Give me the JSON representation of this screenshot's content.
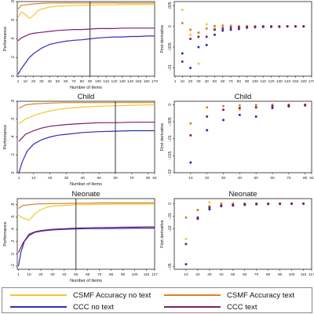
{
  "colors": {
    "csmf_no_text": "#F2C832",
    "csmf_text": "#D9822B",
    "ccc_no_text": "#2E2EB8",
    "ccc_text": "#7A1F6E",
    "vline": "#333333",
    "axis": "#222222"
  },
  "legend": [
    {
      "key": "csmf_no_text",
      "label": "CSMF Accuracy no text"
    },
    {
      "key": "csmf_text",
      "label": "CSMF Accuracy text"
    },
    {
      "key": "ccc_no_text",
      "label": "CCC no text"
    },
    {
      "key": "ccc_text",
      "label": "CCC text"
    }
  ],
  "chart_data": [
    {
      "type": "line",
      "title": "",
      "xlabel": "Number of Items",
      "ylabel": "Performance",
      "xlim": [
        0,
        170
      ],
      "ylim": [
        0,
        0.8
      ],
      "vline": 90,
      "xticks": [
        1,
        10,
        20,
        30,
        40,
        50,
        60,
        70,
        80,
        90,
        100,
        110,
        120,
        130,
        140,
        150,
        160,
        170
      ],
      "yticks": [
        {
          "v": 0,
          "label": "0"
        },
        {
          "v": 0.2,
          "label": ".2"
        },
        {
          "v": 0.4,
          "label": ".4"
        },
        {
          "v": 0.6,
          "label": ".6"
        },
        {
          "v": 0.8,
          "label": ".8"
        }
      ],
      "series": [
        {
          "key": "csmf_no_text",
          "x": [
            1,
            5,
            10,
            15,
            20,
            25,
            30,
            40,
            50,
            60,
            70,
            80,
            90,
            100,
            110,
            120,
            130,
            140,
            150,
            160,
            170
          ],
          "y": [
            0.63,
            0.69,
            0.66,
            0.62,
            0.65,
            0.7,
            0.72,
            0.74,
            0.75,
            0.755,
            0.76,
            0.76,
            0.76,
            0.765,
            0.765,
            0.765,
            0.77,
            0.77,
            0.77,
            0.77,
            0.77
          ]
        },
        {
          "key": "csmf_text",
          "x": [
            1,
            5,
            10,
            15,
            20,
            30,
            40,
            50,
            60,
            70,
            80,
            90,
            100,
            110,
            120,
            130,
            140,
            150,
            160,
            170
          ],
          "y": [
            0.72,
            0.76,
            0.765,
            0.77,
            0.775,
            0.78,
            0.785,
            0.785,
            0.785,
            0.785,
            0.785,
            0.785,
            0.785,
            0.785,
            0.785,
            0.785,
            0.785,
            0.785,
            0.785,
            0.785
          ]
        },
        {
          "key": "ccc_no_text",
          "x": [
            1,
            5,
            10,
            15,
            20,
            25,
            30,
            35,
            40,
            50,
            60,
            70,
            80,
            90,
            100,
            110,
            120,
            130,
            140,
            150,
            160,
            170
          ],
          "y": [
            0.02,
            0.08,
            0.14,
            0.2,
            0.24,
            0.27,
            0.3,
            0.32,
            0.34,
            0.36,
            0.375,
            0.385,
            0.39,
            0.4,
            0.41,
            0.415,
            0.42,
            0.42,
            0.425,
            0.425,
            0.43,
            0.43
          ]
        },
        {
          "key": "ccc_text",
          "x": [
            1,
            5,
            10,
            15,
            20,
            30,
            40,
            50,
            60,
            70,
            80,
            90,
            100,
            110,
            120,
            130,
            140,
            150,
            160,
            170
          ],
          "y": [
            0.38,
            0.41,
            0.43,
            0.45,
            0.46,
            0.47,
            0.48,
            0.49,
            0.495,
            0.5,
            0.5,
            0.505,
            0.51,
            0.51,
            0.51,
            0.515,
            0.515,
            0.515,
            0.515,
            0.515
          ]
        }
      ]
    },
    {
      "type": "scatter",
      "title": "",
      "xlabel": "",
      "ylabel": "First derivative",
      "xlim": [
        0,
        170
      ],
      "ylim": [
        -0.012,
        0.006
      ],
      "xticks": [
        1,
        10,
        20,
        30,
        40,
        50,
        60,
        70,
        80,
        90,
        100,
        110,
        120,
        130,
        140,
        150,
        160,
        170
      ],
      "yticks": [
        {
          "v": 0.005,
          "label": ".005"
        },
        {
          "v": 0,
          "label": "0"
        },
        {
          "v": -0.005,
          "label": "-.005"
        },
        {
          "v": -0.01,
          "label": "-.01"
        }
      ],
      "series": [
        {
          "key": "csmf_no_text",
          "x": [
            10,
            20,
            30,
            40,
            50,
            60,
            70,
            80,
            90,
            100,
            110,
            120,
            130,
            140,
            150,
            160
          ],
          "y": [
            0.004,
            -0.002,
            -0.009,
            0.0005,
            -0.0005,
            0.0003,
            0.0002,
            0.0001,
            0.0001,
            0.0001,
            0,
            0,
            0,
            0,
            0,
            0
          ]
        },
        {
          "key": "csmf_text",
          "x": [
            10,
            20,
            30,
            40,
            50,
            60,
            70,
            80,
            90,
            100,
            110,
            120,
            130,
            140,
            150,
            160
          ],
          "y": [
            0.0008,
            -0.0008,
            -0.0015,
            -0.0005,
            0.0001,
            0.0001,
            0.0001,
            0,
            0,
            0,
            0,
            0,
            0,
            0,
            0,
            0
          ]
        },
        {
          "key": "ccc_no_text",
          "x": [
            10,
            20,
            30,
            40,
            50,
            60,
            70,
            80,
            90,
            100,
            110,
            120,
            130,
            140,
            150,
            160
          ],
          "y": [
            -0.0065,
            -0.01,
            -0.005,
            -0.0045,
            -0.002,
            -0.001,
            -0.0008,
            -0.0006,
            -0.0003,
            -0.0002,
            -0.0001,
            -0.0001,
            -0.0001,
            0,
            0,
            0
          ]
        },
        {
          "key": "ccc_text",
          "x": [
            10,
            20,
            30,
            40,
            50,
            60,
            70,
            80,
            90,
            100,
            110,
            120,
            130,
            140,
            150,
            160
          ],
          "y": [
            -0.0085,
            -0.003,
            -0.0025,
            -0.0025,
            -0.0008,
            -0.0005,
            -0.0003,
            -0.0002,
            -0.0001,
            -0.0001,
            0,
            0,
            0,
            0,
            0,
            0
          ]
        }
      ]
    },
    {
      "type": "line",
      "title": "Child",
      "xlabel": "Number of Items",
      "ylabel": "Performance",
      "xlim": [
        0,
        84
      ],
      "ylim": [
        0,
        0.8
      ],
      "vline": 60,
      "xticks": [
        1,
        10,
        20,
        30,
        40,
        50,
        60,
        70,
        80,
        84
      ],
      "yticks": [
        {
          "v": 0,
          "label": "0"
        },
        {
          "v": 0.2,
          "label": ".2"
        },
        {
          "v": 0.4,
          "label": ".4"
        },
        {
          "v": 0.6,
          "label": ".6"
        },
        {
          "v": 0.8,
          "label": ".8"
        }
      ],
      "series": [
        {
          "key": "csmf_no_text",
          "x": [
            1,
            5,
            10,
            15,
            20,
            25,
            30,
            40,
            50,
            60,
            70,
            80,
            84
          ],
          "y": [
            0.55,
            0.6,
            0.64,
            0.67,
            0.69,
            0.71,
            0.72,
            0.735,
            0.745,
            0.75,
            0.755,
            0.76,
            0.76
          ]
        },
        {
          "key": "csmf_text",
          "x": [
            1,
            5,
            10,
            15,
            20,
            30,
            40,
            50,
            60,
            70,
            80,
            84
          ],
          "y": [
            0.72,
            0.76,
            0.77,
            0.775,
            0.78,
            0.785,
            0.785,
            0.785,
            0.785,
            0.785,
            0.785,
            0.785
          ]
        },
        {
          "key": "ccc_no_text",
          "x": [
            1,
            3,
            6,
            10,
            15,
            20,
            25,
            30,
            40,
            50,
            60,
            70,
            80,
            84
          ],
          "y": [
            0.0,
            0.12,
            0.24,
            0.32,
            0.37,
            0.4,
            0.42,
            0.43,
            0.45,
            0.46,
            0.465,
            0.47,
            0.47,
            0.47
          ]
        },
        {
          "key": "ccc_text",
          "x": [
            1,
            5,
            10,
            15,
            20,
            30,
            40,
            50,
            60,
            70,
            80,
            84
          ],
          "y": [
            0.35,
            0.43,
            0.47,
            0.5,
            0.52,
            0.54,
            0.55,
            0.56,
            0.56,
            0.565,
            0.565,
            0.565
          ]
        }
      ]
    },
    {
      "type": "scatter",
      "title": "Child",
      "xlabel": "",
      "ylabel": "First derivative",
      "xlim": [
        0,
        84
      ],
      "ylim": [
        -0.02,
        0.001
      ],
      "xticks": [
        10,
        20,
        30,
        40,
        50,
        60,
        70,
        80,
        84
      ],
      "yticks": [
        {
          "v": 0,
          "label": "0"
        },
        {
          "v": -0.005,
          "label": "-.005"
        },
        {
          "v": -0.01,
          "label": "-.01"
        },
        {
          "v": -0.015,
          "label": "-.015"
        },
        {
          "v": -0.02,
          "label": "-.02"
        }
      ],
      "series": [
        {
          "key": "csmf_no_text",
          "x": [
            10,
            20,
            30,
            40,
            50,
            60,
            70,
            80
          ],
          "y": [
            -0.009,
            -0.0075,
            -0.0015,
            -0.0015,
            -0.0008,
            -0.0003,
            -0.0002,
            -0.0001
          ]
        },
        {
          "key": "csmf_text",
          "x": [
            10,
            20,
            30,
            40,
            50,
            60,
            70,
            80
          ],
          "y": [
            -0.0055,
            -0.0008,
            -0.0004,
            -0.0002,
            -0.0001,
            0,
            0,
            0
          ]
        },
        {
          "key": "ccc_no_text",
          "x": [
            10,
            20,
            30,
            40,
            50,
            60,
            70,
            80
          ],
          "y": [
            -0.017,
            -0.0075,
            -0.0045,
            -0.003,
            -0.0035,
            -0.001,
            -0.0005,
            -0.0002
          ]
        },
        {
          "key": "ccc_text",
          "x": [
            10,
            20,
            30,
            40,
            50,
            60,
            70,
            80
          ],
          "y": [
            -0.009,
            -0.0035,
            -0.0015,
            -0.001,
            -0.0008,
            -0.0004,
            -0.0002,
            -0.0001
          ]
        }
      ]
    },
    {
      "type": "line",
      "title": "Neonate",
      "xlabel": "Number of Items",
      "ylabel": "Performance",
      "xlim": [
        0,
        117
      ],
      "ylim": [
        -0.25,
        0.9
      ],
      "vline": 50,
      "xticks": [
        1,
        10,
        20,
        30,
        40,
        50,
        60,
        70,
        80,
        90,
        100,
        110,
        117
      ],
      "yticks": [
        {
          "v": -0.2,
          "label": "-.2"
        },
        {
          "v": 0,
          "label": "0"
        },
        {
          "v": 0.2,
          "label": ".2"
        },
        {
          "v": 0.4,
          "label": ".4"
        },
        {
          "v": 0.6,
          "label": ".6"
        },
        {
          "v": 0.8,
          "label": ".8"
        }
      ],
      "series": [
        {
          "key": "csmf_no_text",
          "x": [
            1,
            5,
            10,
            15,
            20,
            25,
            30,
            40,
            50,
            60,
            70,
            80,
            90,
            100,
            110,
            117
          ],
          "y": [
            0.63,
            0.58,
            0.55,
            0.65,
            0.72,
            0.76,
            0.78,
            0.79,
            0.8,
            0.8,
            0.805,
            0.81,
            0.81,
            0.81,
            0.81,
            0.81
          ]
        },
        {
          "key": "csmf_text",
          "x": [
            1,
            5,
            10,
            15,
            20,
            30,
            40,
            50,
            60,
            70,
            80,
            90,
            100,
            110,
            117
          ],
          "y": [
            0.74,
            0.79,
            0.8,
            0.81,
            0.815,
            0.82,
            0.82,
            0.825,
            0.825,
            0.83,
            0.83,
            0.83,
            0.83,
            0.83,
            0.83
          ]
        },
        {
          "key": "ccc_no_text",
          "x": [
            1,
            3,
            6,
            10,
            15,
            20,
            25,
            30,
            40,
            50,
            60,
            70,
            80,
            90,
            100,
            110,
            117
          ],
          "y": [
            -0.2,
            0.02,
            0.2,
            0.3,
            0.35,
            0.37,
            0.38,
            0.39,
            0.4,
            0.405,
            0.41,
            0.41,
            0.415,
            0.415,
            0.42,
            0.42,
            0.42
          ]
        },
        {
          "key": "ccc_text",
          "x": [
            1,
            5,
            10,
            15,
            20,
            25,
            30,
            40,
            50,
            60,
            70,
            80,
            90,
            100,
            110,
            117
          ],
          "y": [
            0.02,
            0.18,
            0.32,
            0.36,
            0.38,
            0.39,
            0.4,
            0.41,
            0.42,
            0.425,
            0.43,
            0.43,
            0.435,
            0.435,
            0.44,
            0.44
          ]
        }
      ]
    },
    {
      "type": "scatter",
      "title": "Neonate",
      "xlabel": "",
      "ylabel": "First derivative",
      "xlim": [
        0,
        117
      ],
      "ylim": [
        -0.052,
        0.004
      ],
      "xticks": [
        10,
        20,
        30,
        40,
        50,
        60,
        70,
        80,
        90,
        100,
        110,
        117
      ],
      "yticks": [
        {
          "v": 0,
          "label": "0"
        },
        {
          "v": -0.01,
          "label": "-.01"
        },
        {
          "v": -0.02,
          "label": "-.02"
        },
        {
          "v": -0.05,
          "label": "-.05"
        }
      ],
      "series": [
        {
          "key": "csmf_no_text",
          "x": [
            10,
            20,
            30,
            40,
            50,
            60,
            70,
            80,
            90,
            100,
            110
          ],
          "y": [
            -0.028,
            -0.005,
            0.001,
            0.0005,
            0.0003,
            0.0002,
            0.0002,
            0.0001,
            0.0001,
            0,
            0
          ]
        },
        {
          "key": "csmf_text",
          "x": [
            10,
            20,
            30,
            40,
            50,
            60,
            70,
            80,
            90,
            100,
            110
          ],
          "y": [
            -0.011,
            -0.005,
            -0.002,
            -0.0005,
            -0.0002,
            -0.0001,
            0,
            0,
            0,
            0,
            0
          ]
        },
        {
          "key": "ccc_no_text",
          "x": [
            10,
            20,
            30,
            40,
            50,
            60,
            70,
            80,
            90,
            100,
            110
          ],
          "y": [
            -0.048,
            -0.011,
            -0.0045,
            -0.002,
            -0.0015,
            -0.001,
            -0.0005,
            -0.0003,
            -0.0002,
            -0.0001,
            0
          ]
        },
        {
          "key": "ccc_text",
          "x": [
            10,
            20,
            30,
            40,
            50,
            60,
            70,
            80,
            90,
            100,
            110
          ],
          "y": [
            -0.032,
            -0.012,
            -0.003,
            -0.0015,
            -0.001,
            -0.0005,
            -0.0003,
            -0.0002,
            -0.0001,
            0,
            0
          ]
        }
      ]
    }
  ]
}
